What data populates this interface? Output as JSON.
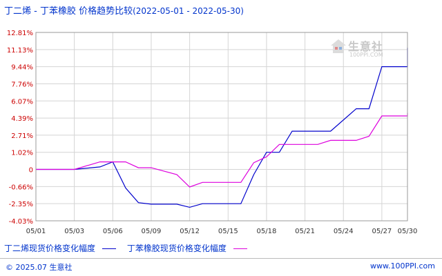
{
  "header": {
    "title": "丁二烯 - 丁苯橡胶 价格趋势比较",
    "date_range": "(2022-05-01 - 2022-05-30)"
  },
  "watermark": {
    "name": "生意社",
    "url": "100PPI.COM"
  },
  "legend": {
    "series1_label": "丁二烯现货价格变化幅度",
    "series2_label": "丁苯橡胶现货价格变化幅度"
  },
  "footer": {
    "copyright": "© 2025.07 生意社",
    "site": "www.100PPI.com"
  },
  "colors": {
    "series1": "#0000cc",
    "series2": "#dd00dd",
    "axis_text": "#cc0000",
    "grid": "#cccccc",
    "text": "#0033cc"
  },
  "chart_data": {
    "type": "line",
    "title": "丁二烯 - 丁苯橡胶 价格趋势比较",
    "xlabel": "",
    "ylabel": "",
    "x_range": [
      1,
      30
    ],
    "ylim": [
      -4.03,
      12.81
    ],
    "y_ticks": [
      "12.81%",
      "11.13%",
      "9.44%",
      "7.76%",
      "6.07%",
      "4.39%",
      "2.71%",
      "1.02%",
      "0",
      "-0.66%",
      "-2.35%",
      "-4.03%"
    ],
    "y_tick_values": [
      12.81,
      11.13,
      9.44,
      7.76,
      6.07,
      4.39,
      2.71,
      1.02,
      0,
      -0.66,
      -2.35,
      -4.03
    ],
    "x_ticks": [
      "05/01",
      "05/03",
      "05/06",
      "05/09",
      "05/12",
      "05/15",
      "05/18",
      "05/21",
      "05/24",
      "05/27",
      "05/30"
    ],
    "x_tick_days": [
      1,
      4,
      7,
      10,
      13,
      16,
      19,
      22,
      25,
      28,
      30
    ],
    "grid": true,
    "series": [
      {
        "name": "丁二烯现货价格变化幅度",
        "color": "#0000cc",
        "points": [
          [
            1,
            0
          ],
          [
            4,
            0
          ],
          [
            6,
            0.15
          ],
          [
            7,
            0.45
          ],
          [
            8,
            -0.8
          ],
          [
            9,
            -2.25
          ],
          [
            10,
            -2.4
          ],
          [
            12,
            -2.4
          ],
          [
            13,
            -2.7
          ],
          [
            14,
            -2.35
          ],
          [
            15,
            -2.35
          ],
          [
            17,
            -2.35
          ],
          [
            18,
            -0.2
          ],
          [
            19,
            1.02
          ],
          [
            20,
            1.02
          ],
          [
            21,
            3.1
          ],
          [
            22,
            3.1
          ],
          [
            24,
            3.1
          ],
          [
            26,
            5.3
          ],
          [
            27,
            5.3
          ],
          [
            28,
            9.44
          ],
          [
            30,
            9.44
          ],
          [
            31,
            11.3
          ]
        ]
      },
      {
        "name": "丁苯橡胶现货价格变化幅度",
        "color": "#dd00dd",
        "points": [
          [
            1,
            0
          ],
          [
            4,
            0
          ],
          [
            6,
            0.45
          ],
          [
            8,
            0.45
          ],
          [
            9,
            0.1
          ],
          [
            10,
            0.1
          ],
          [
            12,
            -0.2
          ],
          [
            13,
            -0.7
          ],
          [
            14,
            -0.5
          ],
          [
            17,
            -0.5
          ],
          [
            18,
            0.4
          ],
          [
            19,
            0.75
          ],
          [
            20,
            1.8
          ],
          [
            22,
            1.8
          ],
          [
            23,
            1.8
          ],
          [
            24,
            2.2
          ],
          [
            26,
            2.2
          ],
          [
            27,
            2.6
          ],
          [
            28,
            4.6
          ],
          [
            30,
            4.6
          ],
          [
            31,
            4.9
          ]
        ]
      }
    ]
  }
}
